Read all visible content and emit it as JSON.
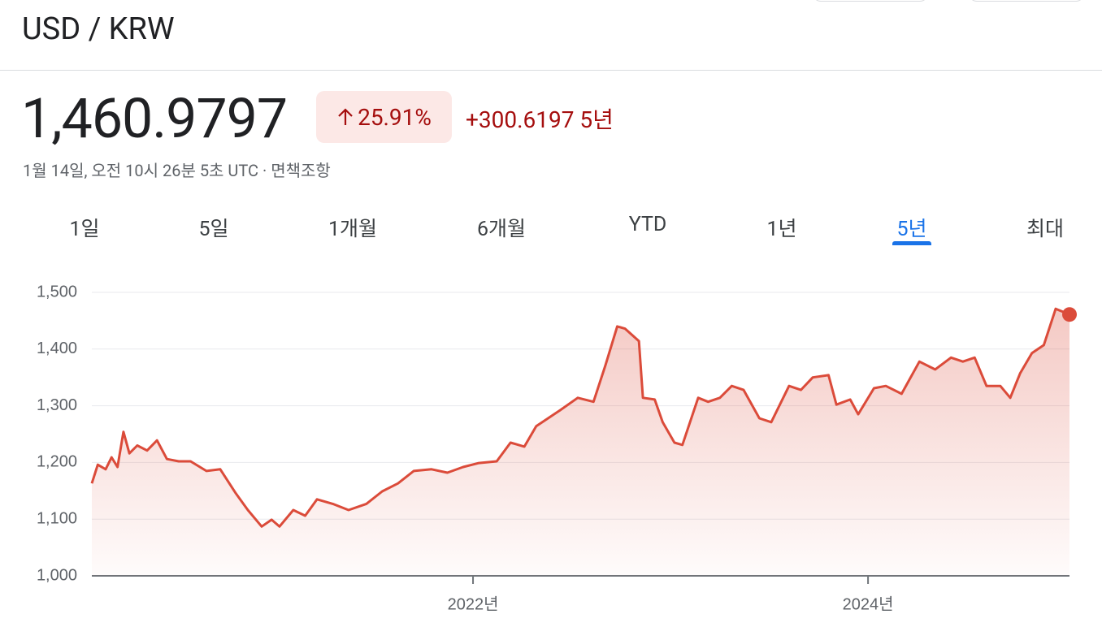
{
  "header": {
    "title": "USD / KRW"
  },
  "quote": {
    "price": "1,460.9797",
    "change_percent": "25.91%",
    "change": "+300.6197",
    "period": "5년",
    "timestamp": "1월 14일, 오전 10시 26분 5초 UTC · 면책조항"
  },
  "tabs": {
    "labels": [
      "1일",
      "5일",
      "1개월",
      "6개월",
      "YTD",
      "1년",
      "5년",
      "최대"
    ],
    "active": 6
  },
  "chart_data": {
    "type": "line",
    "color": "#db4b3a",
    "grid": true,
    "x": [
      2020.07,
      2020.1,
      2020.14,
      2020.17,
      2020.2,
      2020.23,
      2020.26,
      2020.3,
      2020.35,
      2020.4,
      2020.45,
      2020.51,
      2020.57,
      2020.65,
      2020.72,
      2020.8,
      2020.86,
      2020.93,
      2020.98,
      2021.02,
      2021.09,
      2021.15,
      2021.21,
      2021.29,
      2021.37,
      2021.46,
      2021.54,
      2021.62,
      2021.7,
      2021.79,
      2021.87,
      2021.95,
      2022.03,
      2022.12,
      2022.19,
      2022.26,
      2022.32,
      2022.38,
      2022.44,
      2022.53,
      2022.61,
      2022.67,
      2022.73,
      2022.77,
      2022.84,
      2022.86,
      2022.92,
      2022.96,
      2023.02,
      2023.06,
      2023.14,
      2023.19,
      2023.25,
      2023.31,
      2023.37,
      2023.45,
      2023.51,
      2023.6,
      2023.66,
      2023.72,
      2023.8,
      2023.84,
      2023.91,
      2023.95,
      2024.03,
      2024.09,
      2024.17,
      2024.26,
      2024.34,
      2024.42,
      2024.48,
      2024.54,
      2024.6,
      2024.67,
      2024.72,
      2024.77,
      2024.83,
      2024.89,
      2024.95,
      2025.02
    ],
    "values": [
      1163,
      1196,
      1188,
      1209,
      1192,
      1254,
      1216,
      1230,
      1221,
      1239,
      1206,
      1202,
      1202,
      1185,
      1188,
      1145,
      1116,
      1087,
      1099,
      1087,
      1116,
      1106,
      1135,
      1127,
      1116,
      1127,
      1149,
      1163,
      1185,
      1188,
      1182,
      1192,
      1199,
      1202,
      1235,
      1228,
      1264,
      1278,
      1292,
      1314,
      1307,
      1371,
      1440,
      1436,
      1414,
      1314,
      1311,
      1271,
      1235,
      1231,
      1314,
      1307,
      1314,
      1335,
      1328,
      1278,
      1271,
      1335,
      1328,
      1350,
      1354,
      1302,
      1311,
      1285,
      1331,
      1335,
      1321,
      1378,
      1364,
      1385,
      1378,
      1385,
      1335,
      1335,
      1314,
      1357,
      1393,
      1407,
      1471,
      1461
    ],
    "xlim": [
      2020.07,
      2025.02
    ],
    "xticks": [
      {
        "value": 2022,
        "label": "2022년"
      },
      {
        "value": 2024,
        "label": "2024년"
      }
    ],
    "ylim": [
      1000,
      1500
    ],
    "yticks": [
      {
        "value": 1000,
        "label": "1,000"
      },
      {
        "value": 1100,
        "label": "1,100"
      },
      {
        "value": 1200,
        "label": "1,200"
      },
      {
        "value": 1300,
        "label": "1,300"
      },
      {
        "value": 1400,
        "label": "1,400"
      },
      {
        "value": 1500,
        "label": "1,500"
      }
    ]
  }
}
